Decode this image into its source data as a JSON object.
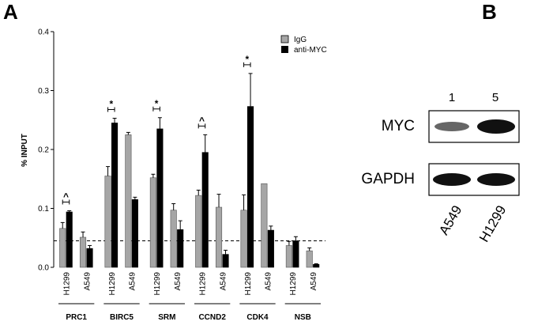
{
  "panels": {
    "a_label": "A",
    "b_label": "B"
  },
  "chart_data": {
    "type": "bar",
    "ylabel": "% INPUT",
    "ylim": [
      0,
      0.4
    ],
    "yticks": [
      "0.0",
      "0.1",
      "0.2",
      "0.3",
      "0.4"
    ],
    "threshold_line": 0.045,
    "legend": {
      "placement": "top-right",
      "items": [
        "IgG",
        "anti-MYC"
      ]
    },
    "series_colors": {
      "IgG": "#a6a6a6",
      "anti-MYC": "#000000"
    },
    "groups": [
      {
        "name": "PRC1",
        "cells": [
          {
            "label": "H1299",
            "igg": 0.066,
            "igg_err": 0.01,
            "myc": 0.094,
            "myc_err": 0.002,
            "sig": "^"
          },
          {
            "label": "A549",
            "igg": 0.051,
            "igg_err": 0.009,
            "myc": 0.032,
            "myc_err": 0.005,
            "sig": ""
          }
        ]
      },
      {
        "name": "BIRC5",
        "cells": [
          {
            "label": "H1299",
            "igg": 0.155,
            "igg_err": 0.016,
            "myc": 0.245,
            "myc_err": 0.008,
            "sig": "*"
          },
          {
            "label": "A549",
            "igg": 0.225,
            "igg_err": 0.004,
            "myc": 0.115,
            "myc_err": 0.004,
            "sig": ""
          }
        ]
      },
      {
        "name": "SRM",
        "cells": [
          {
            "label": "H1299",
            "igg": 0.152,
            "igg_err": 0.006,
            "myc": 0.235,
            "myc_err": 0.019,
            "sig": "*"
          },
          {
            "label": "A549",
            "igg": 0.097,
            "igg_err": 0.011,
            "myc": 0.064,
            "myc_err": 0.015,
            "sig": ""
          }
        ]
      },
      {
        "name": "CCND2",
        "cells": [
          {
            "label": "H1299",
            "igg": 0.122,
            "igg_err": 0.009,
            "myc": 0.195,
            "myc_err": 0.03,
            "sig": "^"
          },
          {
            "label": "A549",
            "igg": 0.102,
            "igg_err": 0.022,
            "myc": 0.022,
            "myc_err": 0.007,
            "sig": ""
          }
        ]
      },
      {
        "name": "CDK4",
        "cells": [
          {
            "label": "H1299",
            "igg": 0.097,
            "igg_err": 0.026,
            "myc": 0.273,
            "myc_err": 0.056,
            "sig": "*"
          },
          {
            "label": "A549",
            "igg": 0.142,
            "igg_err": 0.0,
            "myc": 0.063,
            "myc_err": 0.007,
            "sig": ""
          }
        ]
      },
      {
        "name": "NSB",
        "cells": [
          {
            "label": "H1299",
            "igg": 0.037,
            "igg_err": 0.007,
            "myc": 0.045,
            "myc_err": 0.007,
            "sig": ""
          },
          {
            "label": "A549",
            "igg": 0.028,
            "igg_err": 0.005,
            "myc": 0.005,
            "myc_err": 0.001,
            "sig": ""
          }
        ]
      }
    ]
  },
  "blot": {
    "lanes": [
      "1",
      "5"
    ],
    "rows": [
      {
        "label": "MYC",
        "band_intensity": [
          0.35,
          1.0
        ]
      },
      {
        "label": "GAPDH",
        "band_intensity": [
          1.0,
          1.0
        ]
      }
    ],
    "cell_lines": [
      "A549",
      "H1299"
    ]
  }
}
